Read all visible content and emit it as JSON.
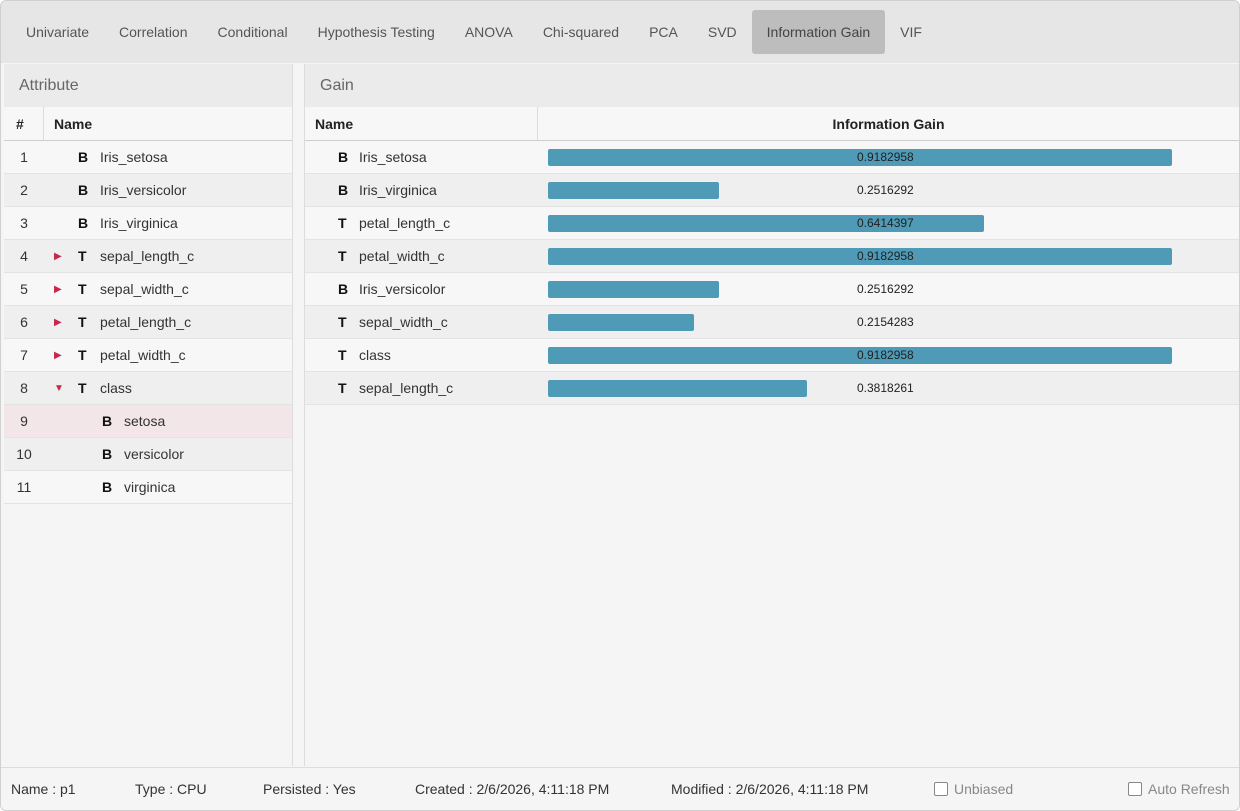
{
  "tabs": [
    {
      "label": "Univariate",
      "active": false
    },
    {
      "label": "Correlation",
      "active": false
    },
    {
      "label": "Conditional",
      "active": false
    },
    {
      "label": "Hypothesis Testing",
      "active": false
    },
    {
      "label": "ANOVA",
      "active": false
    },
    {
      "label": "Chi-squared",
      "active": false
    },
    {
      "label": "PCA",
      "active": false
    },
    {
      "label": "SVD",
      "active": false
    },
    {
      "label": "Information Gain",
      "active": true
    },
    {
      "label": "VIF",
      "active": false
    }
  ],
  "left_panel": {
    "title": "Attribute",
    "col_num": "#",
    "col_name": "Name",
    "rows": [
      {
        "num": "1",
        "type": "B",
        "name": "Iris_setosa",
        "expander": "",
        "child": false
      },
      {
        "num": "2",
        "type": "B",
        "name": "Iris_versicolor",
        "expander": "",
        "child": false
      },
      {
        "num": "3",
        "type": "B",
        "name": "Iris_virginica",
        "expander": "",
        "child": false
      },
      {
        "num": "4",
        "type": "T",
        "name": "sepal_length_c",
        "expander": "▶",
        "child": false
      },
      {
        "num": "5",
        "type": "T",
        "name": "sepal_width_c",
        "expander": "▶",
        "child": false
      },
      {
        "num": "6",
        "type": "T",
        "name": "petal_length_c",
        "expander": "▶",
        "child": false
      },
      {
        "num": "7",
        "type": "T",
        "name": "petal_width_c",
        "expander": "▶",
        "child": false
      },
      {
        "num": "8",
        "type": "T",
        "name": "class",
        "expander": "▼",
        "child": false
      },
      {
        "num": "9",
        "type": "B",
        "name": "setosa",
        "expander": "",
        "child": true,
        "selected": true
      },
      {
        "num": "10",
        "type": "B",
        "name": "versicolor",
        "expander": "",
        "child": true
      },
      {
        "num": "11",
        "type": "B",
        "name": "virginica",
        "expander": "",
        "child": true
      }
    ]
  },
  "right_panel": {
    "title": "Gain",
    "col_name": "Name",
    "col_gain": "Information Gain",
    "bar_color": "#4f9ab7",
    "max_gain": 0.9182958,
    "rows": [
      {
        "type": "B",
        "name": "Iris_setosa",
        "gain": 0.9182958,
        "gain_text": "0.9182958"
      },
      {
        "type": "B",
        "name": "Iris_virginica",
        "gain": 0.2516292,
        "gain_text": "0.2516292"
      },
      {
        "type": "T",
        "name": "petal_length_c",
        "gain": 0.6414397,
        "gain_text": "0.6414397"
      },
      {
        "type": "T",
        "name": "petal_width_c",
        "gain": 0.9182958,
        "gain_text": "0.9182958"
      },
      {
        "type": "B",
        "name": "Iris_versicolor",
        "gain": 0.2516292,
        "gain_text": "0.2516292"
      },
      {
        "type": "T",
        "name": "sepal_width_c",
        "gain": 0.2154283,
        "gain_text": "0.2154283"
      },
      {
        "type": "T",
        "name": "class",
        "gain": 0.9182958,
        "gain_text": "0.9182958"
      },
      {
        "type": "T",
        "name": "sepal_length_c",
        "gain": 0.3818261,
        "gain_text": "0.3818261"
      }
    ]
  },
  "footer": {
    "name": "Name : p1",
    "type": "Type : CPU",
    "persisted": "Persisted : Yes",
    "created": "Created : 2/6/2026, 4:11:18 PM",
    "modified": "Modified : 2/6/2026, 4:11:18 PM",
    "unbiased_label": "Unbiased",
    "auto_refresh_label": "Auto Refresh"
  }
}
